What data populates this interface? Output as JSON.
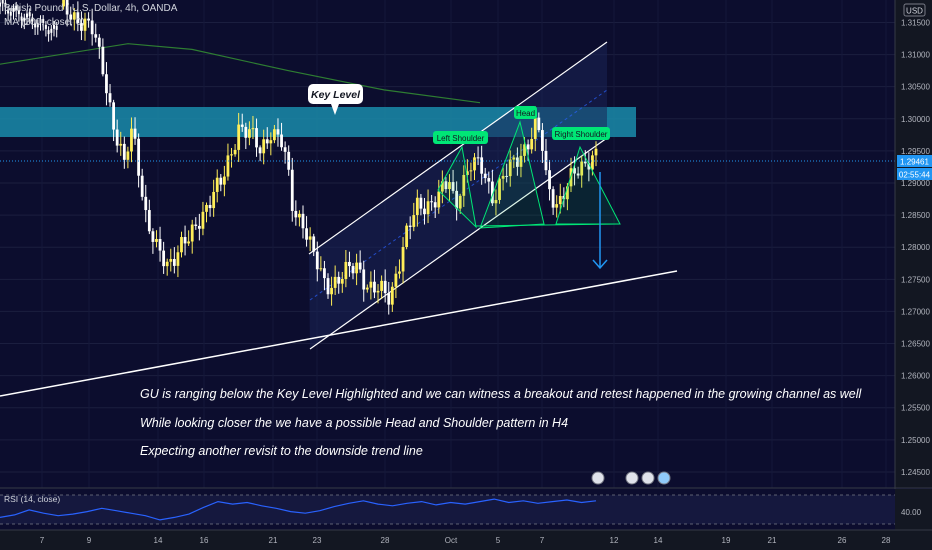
{
  "header": {
    "symbol_title": "British Pound / U.S. Dollar, 4h, OANDA",
    "ma_label": "MA (200, close, 0)",
    "currency_badge": "USD"
  },
  "price_scale": {
    "ticks": [
      "1.31500",
      "1.31000",
      "1.30500",
      "1.30000",
      "1.29500",
      "1.29000",
      "1.28500",
      "1.28000",
      "1.27500",
      "1.27000",
      "1.26500",
      "1.26000",
      "1.25500",
      "1.25000",
      "1.24500"
    ],
    "last_price": "1.29461",
    "countdown": "02:55:44"
  },
  "time_axis": {
    "ticks": [
      "7",
      "9",
      "14",
      "16",
      "21",
      "23",
      "28",
      "Oct",
      "5",
      "7",
      "12",
      "14",
      "19",
      "21",
      "26",
      "28"
    ]
  },
  "rsi_panel": {
    "label": "RSI (14, close)",
    "level_label": "40.00"
  },
  "annotations": {
    "key_level": "Key Level",
    "head": "Head",
    "left_shoulder": "Left Shoulder",
    "right_shoulder": "Right Shoulder"
  },
  "notes": [
    "GU is ranging below the Key Level Highlighted and we can witness a breakout and retest happened in the growing channel as well",
    "While looking closer the we have a possible Head and Shoulder pattern in H4",
    "Expecting another revisit to the downside trend line"
  ],
  "colors": {
    "background": "#0c0d2e",
    "up_candle": "#ffee58",
    "down_candle": "#ffffff",
    "ma_line": "#2e7d32",
    "key_zone": "#1a8caa",
    "pattern": "#00e676",
    "rsi_line": "#2962ff",
    "arrow": "#2196f3"
  },
  "chart_data": {
    "type": "candlestick",
    "instrument": "British Pound / U.S. Dollar",
    "timeframe": "4h",
    "x_labels": [
      "7",
      "9",
      "14",
      "16",
      "21",
      "23",
      "28",
      "Oct",
      "5",
      "7",
      "12",
      "14",
      "19",
      "21",
      "26",
      "28"
    ],
    "ylim": [
      1.2425,
      1.3185
    ],
    "last_price": 1.29461,
    "key_zone": [
      1.2985,
      1.303
    ],
    "close_path": [
      [
        0,
        1.3175
      ],
      [
        3,
        1.316
      ],
      [
        6,
        1.3135
      ],
      [
        8,
        1.308
      ],
      [
        10,
        1.2985
      ],
      [
        12,
        1.292
      ],
      [
        13,
        1.2985
      ],
      [
        14,
        1.296
      ],
      [
        16,
        1.284
      ],
      [
        18,
        1.279
      ],
      [
        20,
        1.2775
      ],
      [
        22,
        1.28
      ],
      [
        24,
        1.281
      ],
      [
        26,
        1.285
      ],
      [
        28,
        1.288
      ],
      [
        30,
        1.29
      ],
      [
        32,
        1.296
      ],
      [
        33,
        1.299
      ],
      [
        35,
        1.2975
      ],
      [
        37,
        1.295
      ],
      [
        39,
        1.2985
      ],
      [
        41,
        1.296
      ],
      [
        42,
        1.292
      ],
      [
        43,
        1.286
      ],
      [
        45,
        1.284
      ],
      [
        47,
        1.278
      ],
      [
        49,
        1.274
      ],
      [
        51,
        1.275
      ],
      [
        53,
        1.276
      ],
      [
        55,
        1.277
      ],
      [
        57,
        1.274
      ],
      [
        59,
        1.273
      ],
      [
        61,
        1.272
      ],
      [
        62,
        1.276
      ],
      [
        64,
        1.282
      ],
      [
        66,
        1.286
      ],
      [
        68,
        1.287
      ],
      [
        70,
        1.288
      ],
      [
        72,
        1.29
      ],
      [
        73,
        1.286
      ],
      [
        74,
        1.29
      ],
      [
        76,
        1.293
      ],
      [
        78,
        1.292
      ],
      [
        80,
        1.288
      ],
      [
        82,
        1.291
      ],
      [
        84,
        1.293
      ],
      [
        86,
        1.296
      ],
      [
        88,
        1.299
      ],
      [
        89,
        1.296
      ],
      [
        90,
        1.289
      ],
      [
        92,
        1.287
      ],
      [
        94,
        1.29
      ],
      [
        96,
        1.292
      ],
      [
        98,
        1.2945
      ],
      [
        99,
        1.2946
      ]
    ],
    "ma_200": [
      [
        0,
        1.3085
      ],
      [
        20,
        1.3117
      ],
      [
        30,
        1.3108
      ],
      [
        45,
        1.3075
      ],
      [
        60,
        1.3045
      ],
      [
        75,
        1.3025
      ]
    ],
    "rsi": {
      "level": 40,
      "values": [
        33,
        36,
        42,
        38,
        35,
        37,
        40,
        44,
        41,
        38,
        35,
        30,
        33,
        37,
        45,
        52,
        49,
        51,
        47,
        44,
        40,
        38,
        41,
        46,
        50,
        53,
        49,
        47,
        50,
        52,
        48,
        51,
        49,
        52,
        55,
        51,
        53,
        50,
        52,
        54,
        51,
        53
      ]
    }
  }
}
